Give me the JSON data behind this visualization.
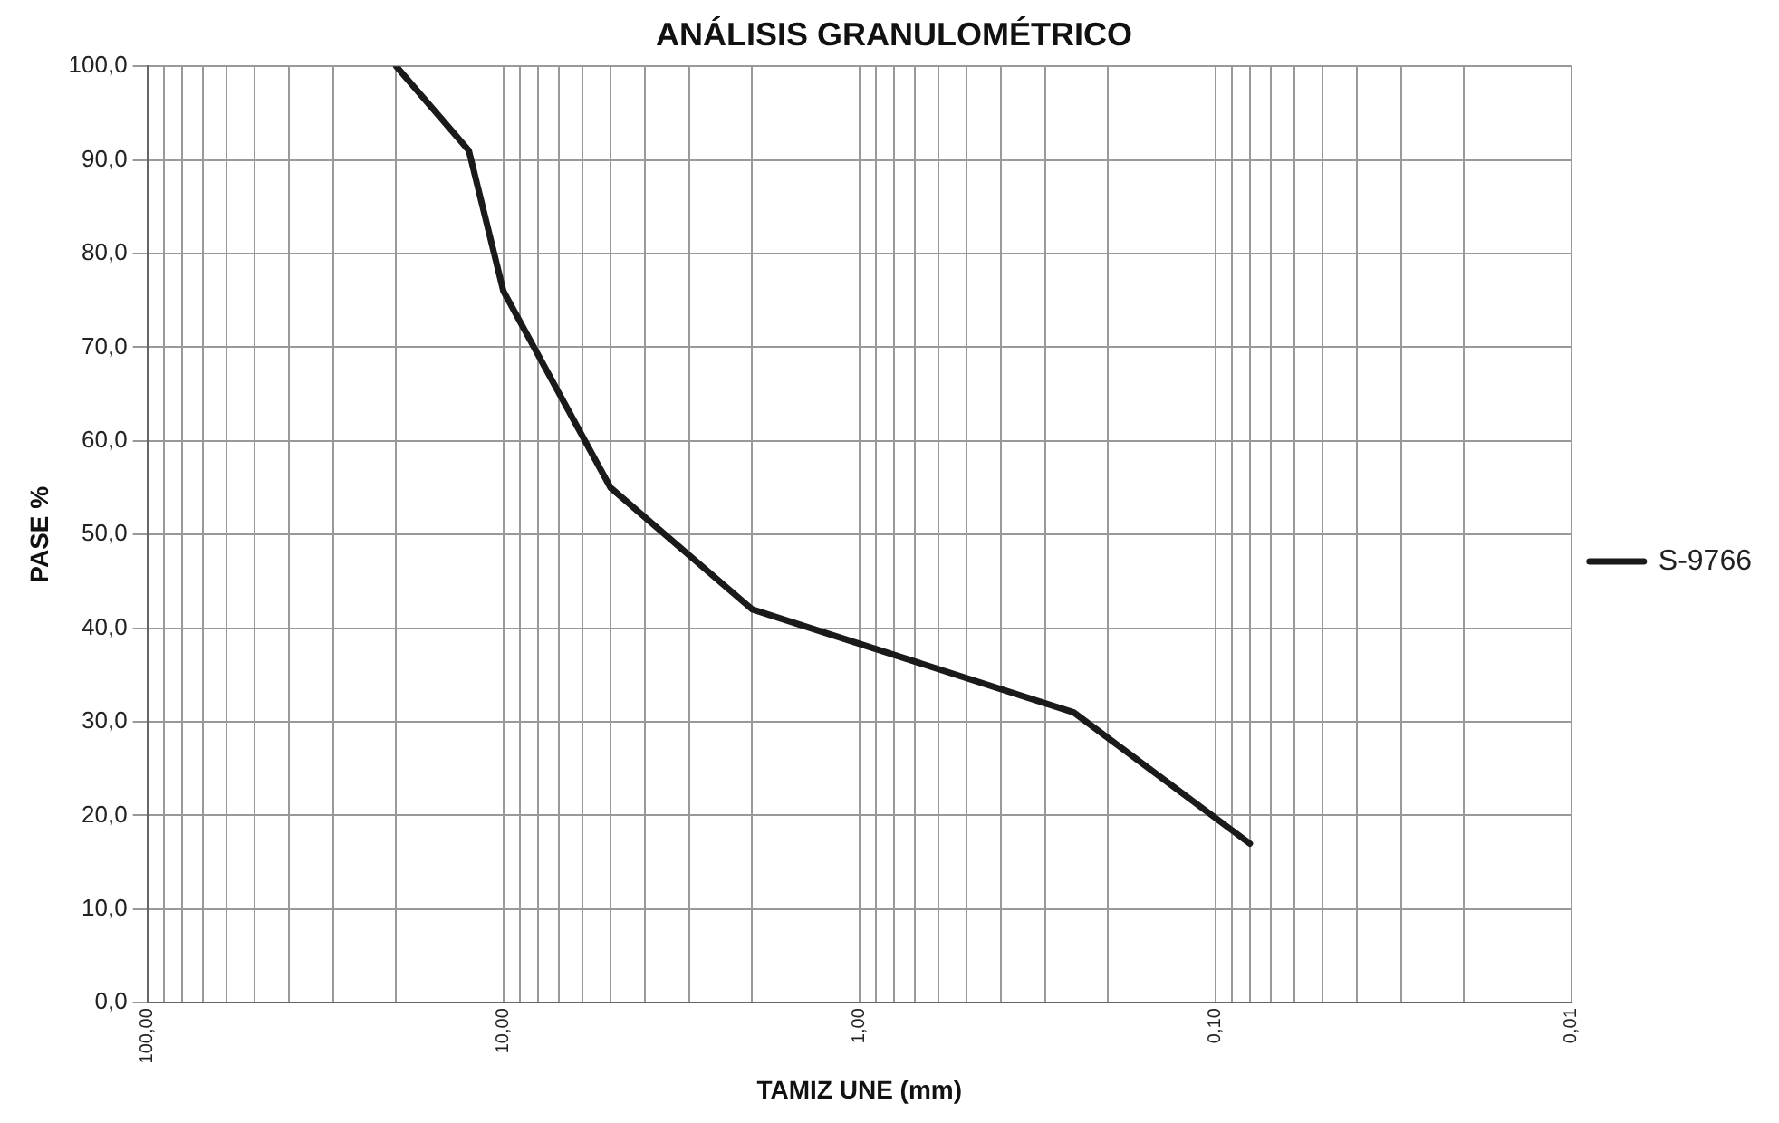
{
  "chart_data": {
    "type": "line",
    "title": "ANÁLISIS GRANULOMÉTRICO",
    "xlabel": "TAMIZ UNE (mm)",
    "ylabel": "PASE %",
    "x": [
      20,
      12.5,
      10,
      5,
      2,
      0.25,
      0.08
    ],
    "series": [
      {
        "name": "S-9766",
        "color": "#1a1a1a",
        "values": [
          100,
          91,
          76,
          55,
          42,
          31,
          17
        ]
      }
    ],
    "log": "x",
    "xlim": [
      100,
      0.01
    ],
    "ylim": [
      0,
      100
    ],
    "xticks": [
      {
        "value": 100,
        "label": "100,00"
      },
      {
        "value": 90,
        "label": null
      },
      {
        "value": 80,
        "label": null
      },
      {
        "value": 70,
        "label": null
      },
      {
        "value": 60,
        "label": null
      },
      {
        "value": 50,
        "label": null
      },
      {
        "value": 40,
        "label": null
      },
      {
        "value": 30,
        "label": null
      },
      {
        "value": 20,
        "label": null
      },
      {
        "value": 10,
        "label": "10,00"
      },
      {
        "value": 9,
        "label": null
      },
      {
        "value": 8,
        "label": null
      },
      {
        "value": 7,
        "label": null
      },
      {
        "value": 6,
        "label": null
      },
      {
        "value": 5,
        "label": null
      },
      {
        "value": 4,
        "label": null
      },
      {
        "value": 3,
        "label": null
      },
      {
        "value": 2,
        "label": null
      },
      {
        "value": 1,
        "label": "1,00"
      },
      {
        "value": 0.9,
        "label": null
      },
      {
        "value": 0.8,
        "label": null
      },
      {
        "value": 0.7,
        "label": null
      },
      {
        "value": 0.6,
        "label": null
      },
      {
        "value": 0.5,
        "label": null
      },
      {
        "value": 0.4,
        "label": null
      },
      {
        "value": 0.3,
        "label": null
      },
      {
        "value": 0.2,
        "label": null
      },
      {
        "value": 0.1,
        "label": "0,10"
      },
      {
        "value": 0.09,
        "label": null
      },
      {
        "value": 0.08,
        "label": null
      },
      {
        "value": 0.07,
        "label": null
      },
      {
        "value": 0.06,
        "label": null
      },
      {
        "value": 0.05,
        "label": null
      },
      {
        "value": 0.04,
        "label": null
      },
      {
        "value": 0.03,
        "label": null
      },
      {
        "value": 0.02,
        "label": null
      },
      {
        "value": 0.01,
        "label": "0,01"
      }
    ],
    "yticks": [
      {
        "value": 0,
        "label": "0,0"
      },
      {
        "value": 10,
        "label": "10,0"
      },
      {
        "value": 20,
        "label": "20,0"
      },
      {
        "value": 30,
        "label": "30,0"
      },
      {
        "value": 40,
        "label": "40,0"
      },
      {
        "value": 50,
        "label": "50,0"
      },
      {
        "value": 60,
        "label": "60,0"
      },
      {
        "value": 70,
        "label": "70,0"
      },
      {
        "value": 80,
        "label": "80,0"
      },
      {
        "value": 90,
        "label": "90,0"
      },
      {
        "value": 100,
        "label": "100,0"
      }
    ],
    "grid": true,
    "legend": "right",
    "marker": "none",
    "line_style": "solid"
  }
}
